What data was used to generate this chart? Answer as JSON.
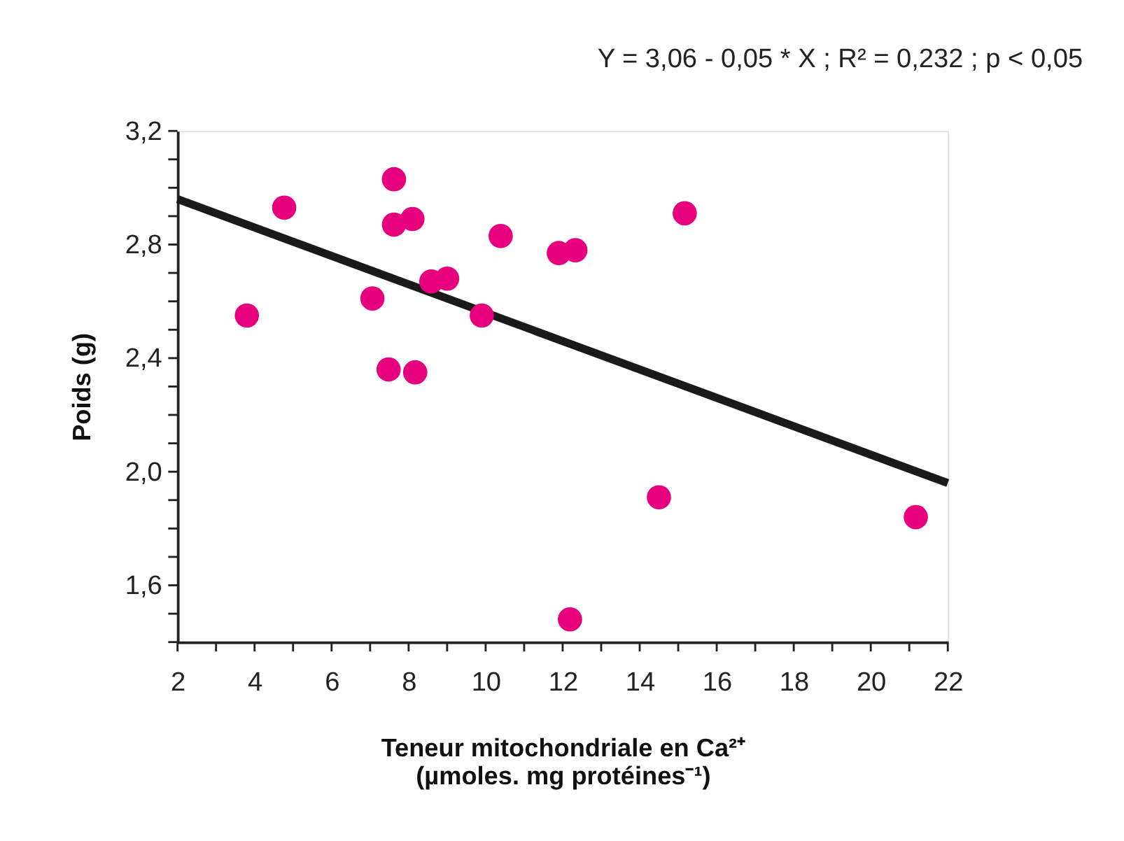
{
  "chart_data": {
    "type": "scatter",
    "title": "Y = 3,06 - 0,05 * X ; R² = 0,232 ; p < 0,05",
    "xlabel": "Teneur mitochondriale en Ca²⁺\n(µmoles. mg protéines⁻¹)",
    "ylabel": "Poids (g)",
    "xlim": [
      2,
      22
    ],
    "xticks": [
      2,
      {
        "value": 3,
        "label": null
      },
      4,
      {
        "value": 5,
        "label": null
      },
      6,
      {
        "value": 7,
        "label": null
      },
      8,
      {
        "value": 9,
        "label": null
      },
      10,
      {
        "value": 11,
        "label": null
      },
      12,
      {
        "value": 13,
        "label": null
      },
      14,
      {
        "value": 15,
        "label": null
      },
      16,
      {
        "value": 17,
        "label": null
      },
      18,
      {
        "value": 19,
        "label": null
      },
      20,
      {
        "value": 21,
        "label": null
      },
      22
    ],
    "ylim": [
      1.4,
      3.2
    ],
    "yticks": [
      {
        "value": 1.4,
        "label": null
      },
      {
        "value": 1.5,
        "label": null
      },
      {
        "value": 1.6,
        "label": "1,6"
      },
      {
        "value": 1.7,
        "label": null
      },
      {
        "value": 1.8,
        "label": null
      },
      {
        "value": 1.9,
        "label": null
      },
      {
        "value": 2.0,
        "label": "2,0"
      },
      {
        "value": 2.1,
        "label": null
      },
      {
        "value": 2.2,
        "label": null
      },
      {
        "value": 2.3,
        "label": null
      },
      {
        "value": 2.4,
        "label": "2,4"
      },
      {
        "value": 2.5,
        "label": null
      },
      {
        "value": 2.6,
        "label": null
      },
      {
        "value": 2.7,
        "label": null
      },
      {
        "value": 2.8,
        "label": "2,8"
      },
      {
        "value": 2.9,
        "label": null
      },
      {
        "value": 3.0,
        "label": null
      },
      {
        "value": 3.1,
        "label": null
      },
      {
        "value": 3.2,
        "label": "3,2"
      }
    ],
    "grid": false,
    "marker": "circle",
    "series": [
      {
        "color": "#e6007e",
        "x": [
          3.8,
          4.77,
          7.06,
          7.48,
          7.62,
          7.62,
          8.1,
          8.17,
          8.59,
          9.0,
          9.9,
          10.39,
          11.9,
          12.33,
          12.19,
          14.5,
          15.17,
          21.17
        ],
        "values": [
          2.55,
          2.93,
          2.61,
          2.36,
          3.03,
          2.87,
          2.89,
          2.35,
          2.67,
          2.68,
          2.55,
          2.83,
          2.77,
          2.78,
          1.48,
          1.91,
          2.91,
          1.84
        ]
      },
      {
        "type": "line",
        "color": "#1a1a1a",
        "line_style": "solid",
        "marker": "none",
        "x": [
          2,
          22
        ],
        "values": [
          2.96,
          1.96
        ]
      }
    ]
  }
}
